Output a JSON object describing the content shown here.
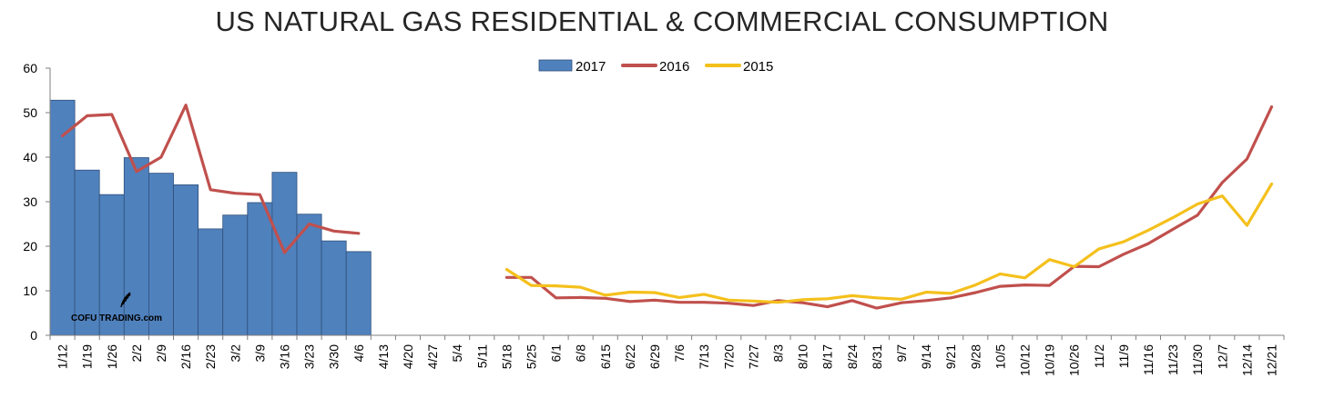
{
  "chart_data": {
    "type": "bar+line",
    "title": "US NATURAL GAS RESIDENTIAL & COMMERCIAL CONSUMPTION",
    "xlabel": "",
    "ylabel": "",
    "ylim": [
      0,
      60
    ],
    "yticks": [
      0,
      10,
      20,
      30,
      40,
      50,
      60
    ],
    "legend_position": "top-center",
    "watermark": "COFU TRADING.com",
    "categories": [
      "1/12",
      "1/19",
      "1/26",
      "2/2",
      "2/9",
      "2/16",
      "2/23",
      "3/2",
      "3/9",
      "3/16",
      "3/23",
      "3/30",
      "4/6",
      "4/13",
      "4/20",
      "4/27",
      "5/4",
      "5/11",
      "5/18",
      "5/25",
      "6/1",
      "6/8",
      "6/15",
      "6/22",
      "6/29",
      "7/6",
      "7/13",
      "7/20",
      "7/27",
      "8/3",
      "8/10",
      "8/17",
      "8/24",
      "8/31",
      "9/7",
      "9/14",
      "9/21",
      "9/28",
      "10/5",
      "10/12",
      "10/19",
      "10/26",
      "11/2",
      "11/9",
      "11/16",
      "11/23",
      "11/30",
      "12/7",
      "12/14",
      "12/21"
    ],
    "series": [
      {
        "name": "2017",
        "kind": "bar",
        "color": "#4F81BD",
        "values": [
          52.8,
          37.1,
          31.6,
          39.9,
          36.4,
          33.8,
          23.9,
          27.0,
          29.8,
          36.6,
          27.2,
          21.2,
          18.8,
          null,
          null,
          null,
          null,
          null,
          null,
          null,
          null,
          null,
          null,
          null,
          null,
          null,
          null,
          null,
          null,
          null,
          null,
          null,
          null,
          null,
          null,
          null,
          null,
          null,
          null,
          null,
          null,
          null,
          null,
          null,
          null,
          null,
          null,
          null,
          null,
          null
        ]
      },
      {
        "name": "2016",
        "kind": "line",
        "color": "#C0504D",
        "values": [
          44.8,
          49.3,
          49.6,
          36.8,
          40.0,
          51.7,
          32.7,
          31.9,
          31.6,
          18.6,
          25.0,
          23.4,
          22.9,
          null,
          null,
          null,
          null,
          null,
          13.0,
          13.0,
          8.4,
          8.5,
          8.3,
          7.6,
          7.9,
          7.4,
          7.4,
          7.2,
          6.7,
          7.8,
          7.3,
          6.4,
          7.8,
          6.1,
          7.3,
          7.8,
          8.4,
          9.6,
          11.0,
          11.3,
          11.2,
          15.5,
          15.4,
          18.2,
          20.6,
          23.8,
          27.0,
          34.3,
          39.6,
          51.3
        ]
      },
      {
        "name": "2015",
        "kind": "line",
        "color": "#F4C01C",
        "values": [
          null,
          null,
          null,
          null,
          null,
          null,
          null,
          null,
          null,
          null,
          null,
          null,
          null,
          null,
          null,
          null,
          null,
          null,
          14.8,
          11.2,
          11.1,
          10.8,
          9.0,
          9.7,
          9.6,
          8.5,
          9.2,
          7.9,
          7.7,
          7.4,
          8.0,
          8.2,
          8.9,
          8.4,
          8.1,
          9.7,
          9.4,
          11.3,
          13.8,
          12.9,
          17.0,
          15.4,
          19.4,
          21.0,
          23.6,
          26.4,
          29.5,
          31.3,
          24.7,
          34.0
        ]
      }
    ]
  }
}
